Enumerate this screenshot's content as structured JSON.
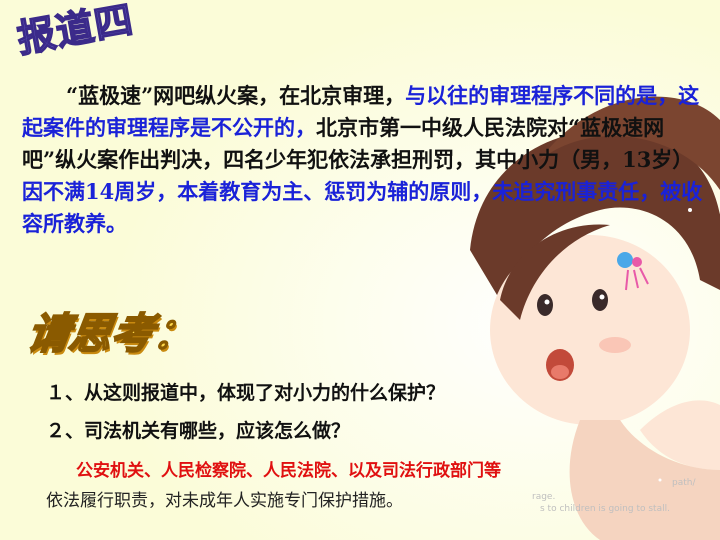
{
  "title": "报道四",
  "paragraph": {
    "part1": "“蓝极速”网吧纵火案，在北京审理，",
    "part2_blue": "与以往的审理程序不同的是，这起案件的审理程序是不公开的，",
    "part3": "北京市第一中级人民法院对“蓝极速网吧”纵火案作出判决，四名少年犯依法承担刑罚，其中小力（男，13岁）",
    "part4_blue": "因不满14周岁，本着教育为主、惩罚为辅的原则，未追究刑事责任，被收容所教养。"
  },
  "think_label": "请思考：",
  "questions": [
    "１、从这则报道中，体现了对小力的什么保护？",
    "２、司法机关有哪些，应该怎么做？"
  ],
  "answer_red": "公安机关、人民检察院、人民法院、以及司法行政部门等",
  "answer_black": "依法履行职责，对未成年人实施专门保护措施。",
  "watermark": {
    "line1": "path/",
    "line2": "rage.",
    "line3": "s to children is going to stall."
  },
  "colors": {
    "blue": "#1a22d8",
    "red": "#e01010",
    "background": "#fbfcd8"
  }
}
